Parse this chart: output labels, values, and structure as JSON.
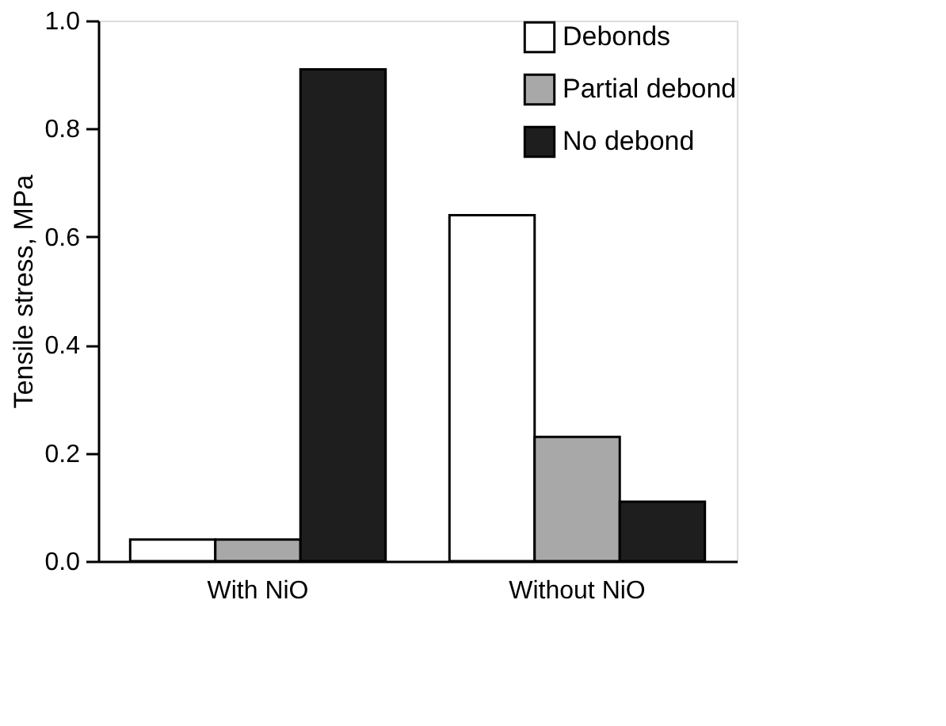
{
  "chart_data": {
    "type": "bar",
    "ylabel": "Tensile stress, MPa",
    "categories": [
      "With NiO",
      "Without NiO"
    ],
    "series": [
      {
        "name": "Debonds",
        "color": "#ffffff",
        "values": [
          0.04,
          0.64
        ]
      },
      {
        "name": "Partial debond",
        "color": "#a8a8a8",
        "values": [
          0.04,
          0.23
        ]
      },
      {
        "name": "No debond",
        "color": "#1e1e1e",
        "values": [
          0.91,
          0.11
        ]
      }
    ],
    "ylim": [
      0,
      1.0
    ],
    "yticks": [
      {
        "value": 0,
        "label": "0.0"
      },
      {
        "value": 0.2,
        "label": "0.2"
      },
      {
        "value": 0.4,
        "label": "0.4"
      },
      {
        "value": 0.6,
        "label": "0.6"
      },
      {
        "value": 0.8,
        "label": "0.8"
      },
      {
        "value": 1.0,
        "label": "1.0"
      }
    ],
    "grid": false,
    "legend": "top right"
  }
}
